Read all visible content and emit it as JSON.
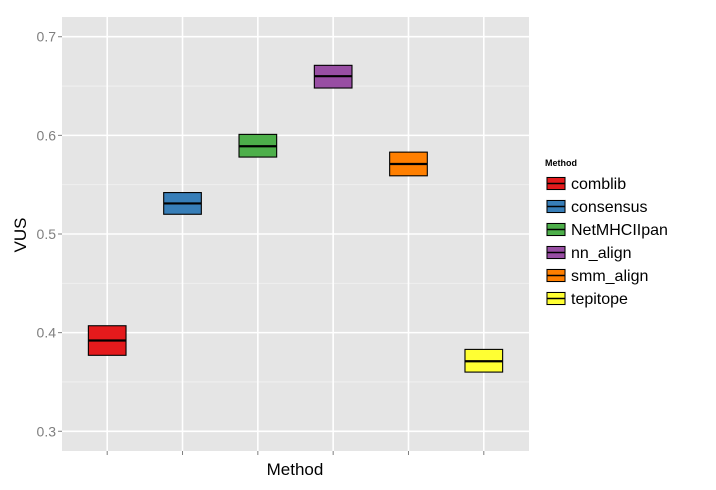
{
  "chart_data": {
    "type": "box",
    "xlabel": "Method",
    "ylabel": "VUS",
    "ylim": [
      0.28,
      0.72
    ],
    "yticks": [
      0.3,
      0.4,
      0.5,
      0.6,
      0.7
    ],
    "ytick_labels": [
      "0.3",
      "0.4",
      "0.5",
      "0.6",
      "0.7"
    ],
    "grid": true,
    "legend": {
      "title": "Method",
      "placement": "right"
    },
    "series": [
      {
        "name": "comblib",
        "color": "#e41a1c",
        "q1": 0.377,
        "median": 0.392,
        "q3": 0.407
      },
      {
        "name": "consensus",
        "color": "#377eb8",
        "q1": 0.52,
        "median": 0.531,
        "q3": 0.542
      },
      {
        "name": "NetMHCIIpan",
        "color": "#4daf4a",
        "q1": 0.578,
        "median": 0.589,
        "q3": 0.601
      },
      {
        "name": "nn_align",
        "color": "#984ea3",
        "q1": 0.648,
        "median": 0.66,
        "q3": 0.671
      },
      {
        "name": "smm_align",
        "color": "#ff7f00",
        "q1": 0.559,
        "median": 0.571,
        "q3": 0.583
      },
      {
        "name": "tepitope",
        "color": "#ffff33",
        "q1": 0.36,
        "median": 0.371,
        "q3": 0.383
      }
    ]
  }
}
